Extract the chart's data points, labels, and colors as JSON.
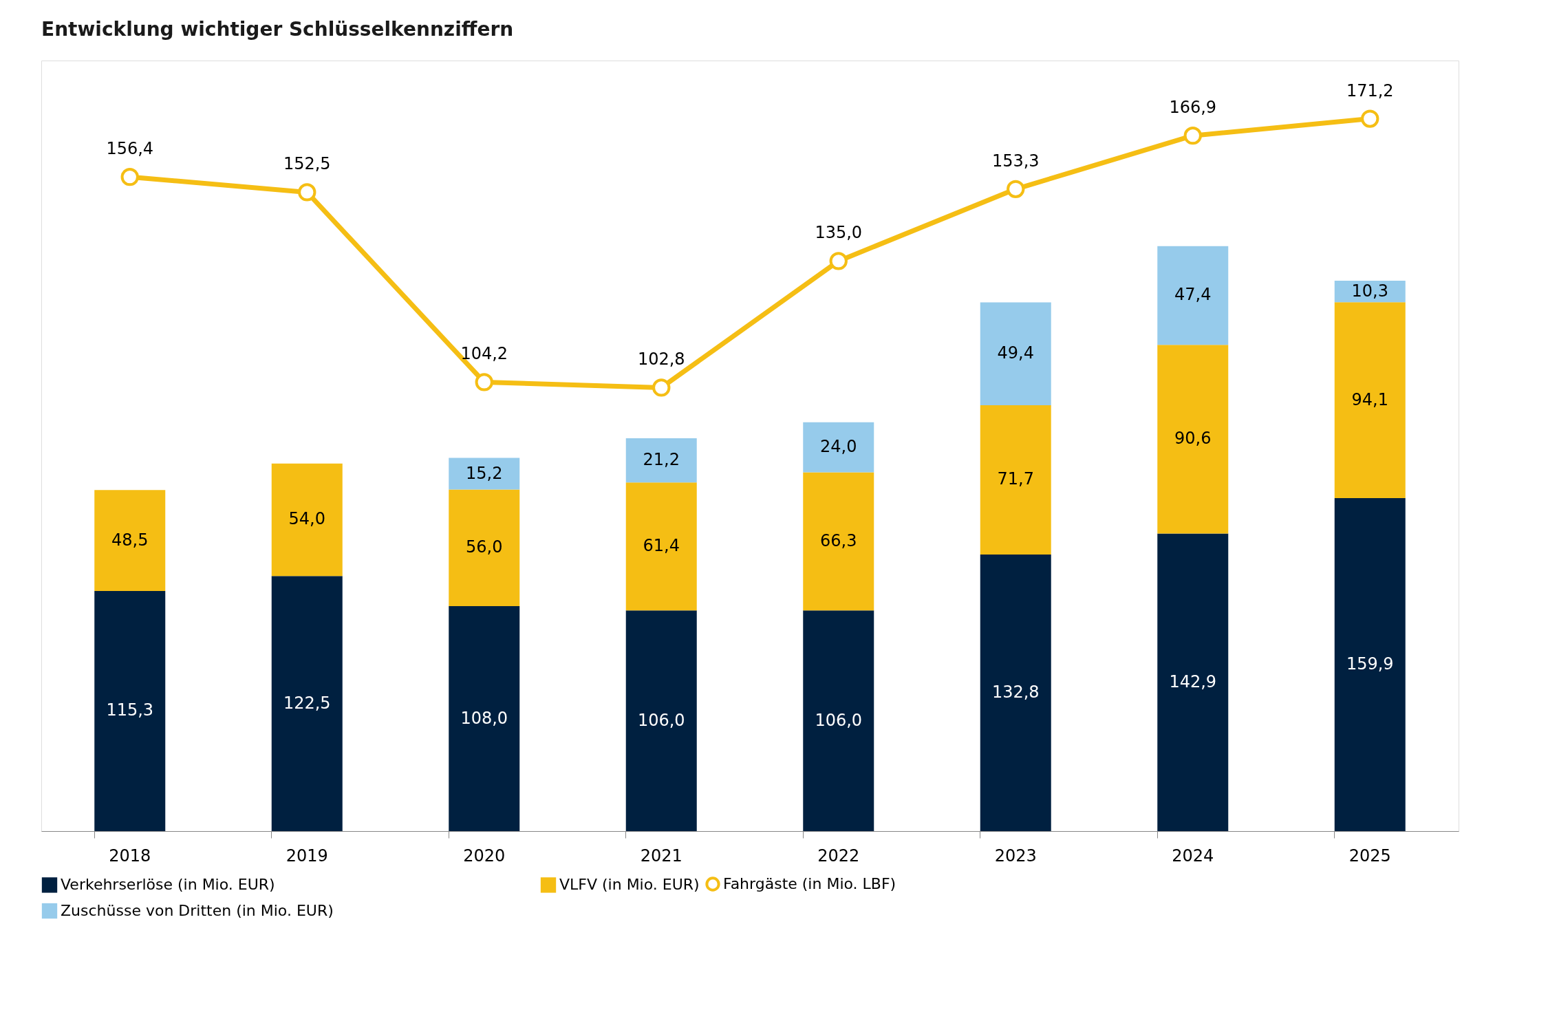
{
  "chart_data": {
    "type": "bar",
    "title": "Entwicklung wichtiger Schlüsselkennziffern",
    "categories": [
      "2018",
      "2019",
      "2020",
      "2021",
      "2022",
      "2023",
      "2024",
      "2025"
    ],
    "stacked": true,
    "ylim": [
      0,
      370
    ],
    "y2lim": [
      -10,
      186
    ],
    "tick_labels": "x",
    "legend": "bottom",
    "series": [
      {
        "name": "Verkehrserlöse (in Mio. EUR)",
        "color": "#002040",
        "values": [
          115.3,
          122.5,
          108.0,
          106.0,
          106.0,
          132.8,
          142.9,
          159.9
        ],
        "value_labels": [
          "115,3",
          "122,5",
          "108,0",
          "106,0",
          "106,0",
          "132,8",
          "142,9",
          "159,9"
        ]
      },
      {
        "name": "VLFV (in Mio. EUR)",
        "color": "#f5be14",
        "values": [
          48.5,
          54.0,
          56.0,
          61.4,
          66.3,
          71.7,
          90.6,
          94.1
        ],
        "value_labels": [
          "48,5",
          "54,0",
          "56,0",
          "61,4",
          "66,3",
          "71,7",
          "90,6",
          "94,1"
        ]
      },
      {
        "name": "Zuschüsse von Dritten (in Mio. EUR)",
        "color": "#96cbeb",
        "values": [
          null,
          null,
          15.2,
          21.2,
          24.0,
          49.4,
          47.4,
          10.3
        ],
        "value_labels": [
          null,
          null,
          "15,2",
          "21,2",
          "24,0",
          "49,4",
          "47,4",
          "10,3"
        ]
      },
      {
        "name": "Fahrgäste (in Mio. LBF)",
        "color": "#f5be14",
        "type": "line",
        "axis": "y2",
        "marker": "circle",
        "values": [
          156.4,
          152.5,
          104.2,
          102.8,
          135.0,
          153.3,
          166.9,
          171.2
        ],
        "value_labels": [
          "156,4",
          "152,5",
          "104,2",
          "102,8",
          "135,0",
          "153,3",
          "166,9",
          "171,2"
        ]
      }
    ]
  }
}
